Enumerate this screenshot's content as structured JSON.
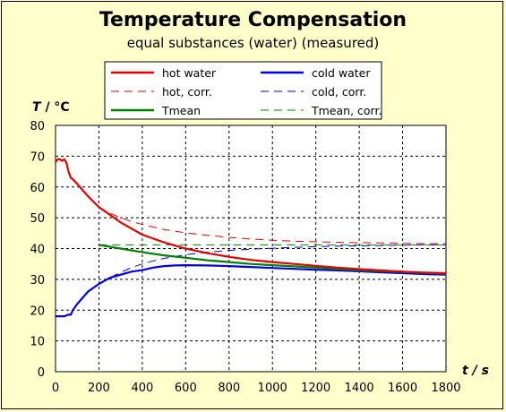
{
  "chart_data": {
    "type": "line",
    "title": "Temperature Compensation",
    "subtitle": "equal substances (water) (measured)",
    "xlabel": "t / s",
    "ylabel": "T / °C",
    "xlim": [
      0,
      1800
    ],
    "ylim": [
      0,
      80
    ],
    "xticks": [
      0,
      200,
      400,
      600,
      800,
      1000,
      1200,
      1400,
      1600,
      1800
    ],
    "yticks": [
      0,
      10,
      20,
      30,
      40,
      50,
      60,
      70,
      80
    ],
    "grid": true,
    "legend_position": "top",
    "series": [
      {
        "name": "hot water",
        "color": "#e00000",
        "style": "solid",
        "x": [
          0,
          10,
          20,
          30,
          40,
          50,
          60,
          70,
          80,
          100,
          150,
          200,
          250,
          300,
          350,
          400,
          500,
          600,
          700,
          800,
          900,
          1000,
          1100,
          1200,
          1300,
          1400,
          1500,
          1600,
          1700,
          1800
        ],
        "y": [
          68,
          69,
          69,
          68.5,
          69,
          68,
          65,
          63,
          62.5,
          61,
          57,
          53.5,
          51,
          48.5,
          46.5,
          44.5,
          42,
          40,
          38.5,
          37.3,
          36.3,
          35.6,
          35,
          34.4,
          33.8,
          33.3,
          32.9,
          32.5,
          32.2,
          32
        ]
      },
      {
        "name": "cold water",
        "color": "#0000e0",
        "style": "solid",
        "x": [
          0,
          20,
          40,
          60,
          70,
          80,
          100,
          150,
          200,
          250,
          300,
          350,
          400,
          450,
          500,
          550,
          600,
          700,
          800,
          900,
          1000,
          1100,
          1200,
          1300,
          1400,
          1500,
          1600,
          1700,
          1800
        ],
        "y": [
          18,
          18,
          18,
          18.5,
          18.5,
          20,
          22,
          26,
          28.5,
          30.5,
          31.5,
          32.5,
          33,
          33.8,
          34.3,
          34.5,
          34.6,
          34.5,
          34.3,
          34,
          33.7,
          33.4,
          33.1,
          32.9,
          32.6,
          32.3,
          32,
          31.7,
          31.5
        ]
      },
      {
        "name": "Tmean",
        "color": "#008000",
        "style": "solid",
        "x": [
          200,
          300,
          400,
          500,
          600,
          700,
          800,
          900,
          1000,
          1100,
          1200,
          1300,
          1400,
          1500,
          1600,
          1700,
          1800
        ],
        "y": [
          41.2,
          40,
          38.8,
          37.8,
          37,
          36.2,
          35.6,
          35,
          34.6,
          34.2,
          33.8,
          33.4,
          33,
          32.7,
          32.4,
          32.1,
          31.8
        ]
      },
      {
        "name": "hot, corr.",
        "color": "#e00000",
        "style": "dashed",
        "x": [
          200,
          250,
          300,
          350,
          400,
          500,
          600,
          700,
          800,
          900,
          1000,
          1100,
          1200,
          1300,
          1400,
          1500,
          1600,
          1700,
          1800
        ],
        "y": [
          53.5,
          51.5,
          50,
          48.8,
          47.8,
          46.2,
          45.1,
          44.3,
          43.6,
          43.1,
          42.7,
          42.4,
          42.2,
          42,
          41.9,
          41.8,
          41.7,
          41.6,
          41.6
        ]
      },
      {
        "name": "cold, corr.",
        "color": "#0000e0",
        "style": "dashed",
        "x": [
          200,
          250,
          300,
          350,
          400,
          450,
          500,
          600,
          700,
          800,
          900,
          1000,
          1100,
          1200,
          1300,
          1400,
          1500,
          1600,
          1700,
          1800
        ],
        "y": [
          28.5,
          30.5,
          32.3,
          33.8,
          35,
          36,
          36.8,
          38,
          38.8,
          39.4,
          39.8,
          40.1,
          40.4,
          40.6,
          40.8,
          40.9,
          41,
          41.1,
          41.2,
          41.2
        ]
      },
      {
        "name": "Tmean, corr.",
        "color": "#008000",
        "style": "dashed",
        "x": [
          200,
          1800
        ],
        "y": [
          41.2,
          41.2
        ]
      }
    ]
  }
}
